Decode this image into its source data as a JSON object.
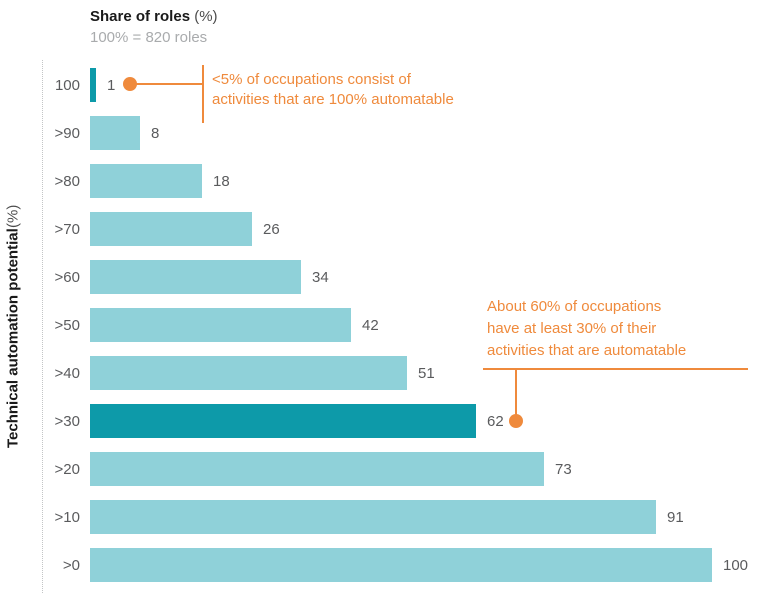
{
  "title": {
    "main": "Share of roles",
    "unit": " (%)"
  },
  "subtitle": "100% = 820 roles",
  "y_axis_label": {
    "main": "Technical automation potential",
    "unit": " (%)"
  },
  "colors": {
    "bar": "#8FD1D9",
    "bar_highlight": "#0D9AA9",
    "annotation": "#EF8A3C",
    "label_gray": "#5A5B5D",
    "subtitle_gray": "#A9ABAD",
    "axis_line": "#C3C5C6"
  },
  "chart_data": {
    "type": "bar",
    "orientation": "horizontal",
    "title": "Share of roles (%)",
    "subtitle": "100% = 820 roles",
    "ylabel": "Technical automation potential (%)",
    "xlabel": "Share of roles (%)",
    "xlim": [
      0,
      100
    ],
    "grid": false,
    "legend": false,
    "data_labels": true,
    "categories": [
      "100",
      ">90",
      ">80",
      ">70",
      ">60",
      ">50",
      ">40",
      ">30",
      ">20",
      ">10",
      ">0"
    ],
    "values": [
      1,
      8,
      18,
      26,
      34,
      42,
      51,
      62,
      73,
      91,
      100
    ],
    "highlight_categories": [
      "100",
      ">30"
    ]
  },
  "annotations": [
    {
      "text": "<5% of occupations consist of\nactivities that are 100% automatable",
      "target_category": "100"
    },
    {
      "text": "About 60% of occupations\nhave at least 30% of their\nactivities that are automatable",
      "target_category": ">30"
    }
  ]
}
